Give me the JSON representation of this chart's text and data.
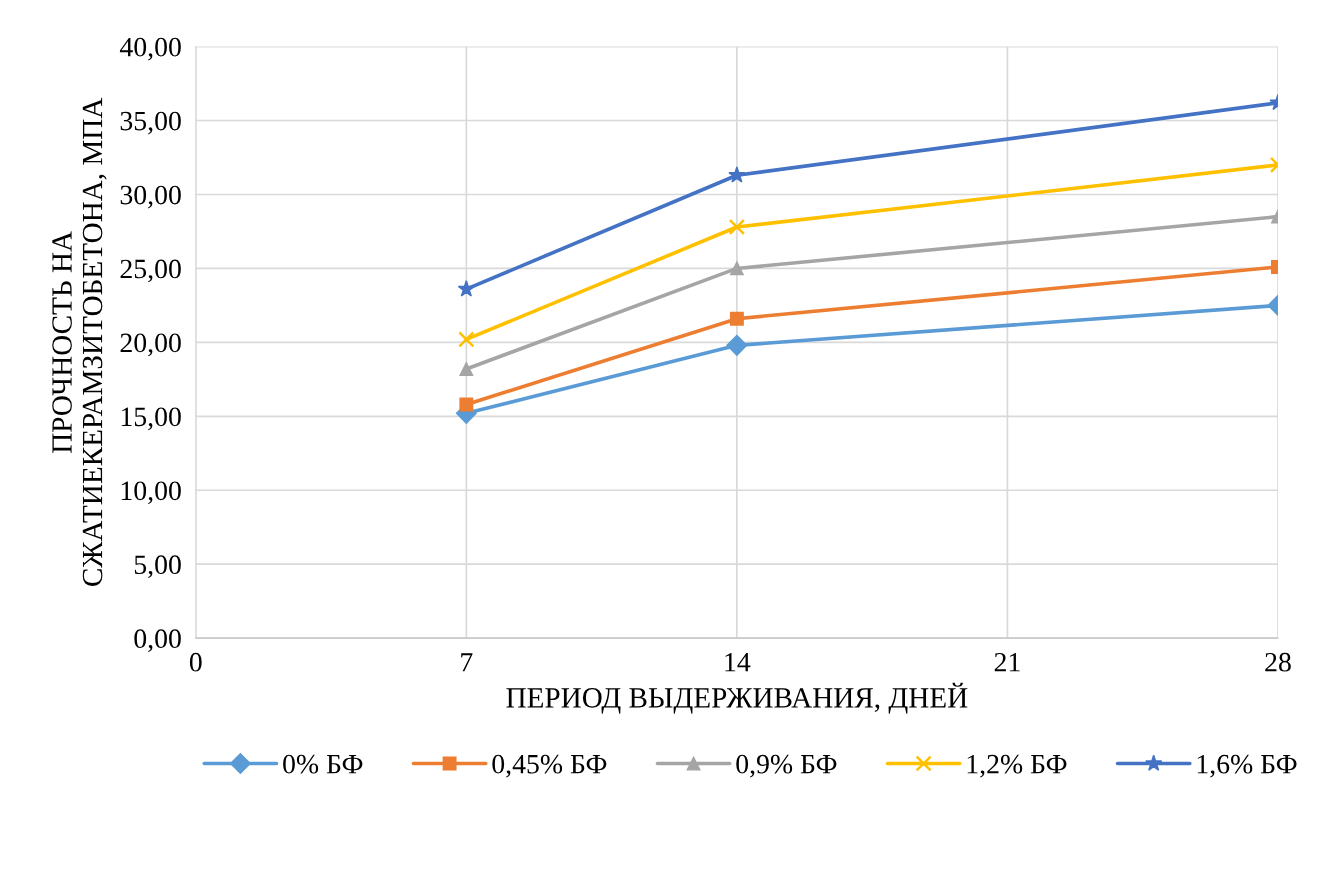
{
  "chart_data": {
    "type": "line",
    "xlabel": "ПЕРИОД ВЫДЕРЖИВАНИЯ, ДНЕЙ",
    "ylabel": "ПРОЧНОСТЬ НА\nСЖАТИЕКЕРАМЗИТОБЕТОНА, МПА",
    "x": [
      7,
      14,
      28
    ],
    "series": [
      {
        "name": "0% БФ",
        "color": "#5b9bd5",
        "marker": "diamond",
        "values": [
          15.2,
          19.8,
          22.5
        ]
      },
      {
        "name": "0,45% БФ",
        "color": "#ed7d31",
        "marker": "square",
        "values": [
          15.8,
          21.6,
          25.1
        ]
      },
      {
        "name": "0,9% БФ",
        "color": "#a5a5a5",
        "marker": "triangle",
        "values": [
          18.2,
          25.0,
          28.5
        ]
      },
      {
        "name": "1,2% БФ",
        "color": "#ffc000",
        "marker": "cross",
        "values": [
          20.2,
          27.8,
          32.0
        ]
      },
      {
        "name": "1,6% БФ",
        "color": "#4472c4",
        "marker": "star",
        "values": [
          23.6,
          31.3,
          36.2
        ]
      }
    ],
    "xlim": [
      0,
      28
    ],
    "xticks": [
      0,
      7,
      14,
      21,
      28
    ],
    "ylim": [
      0,
      40
    ],
    "yticks": [
      {
        "value": 0,
        "label": "0,00"
      },
      {
        "value": 5,
        "label": "5,00"
      },
      {
        "value": 10,
        "label": "10,00"
      },
      {
        "value": 15,
        "label": "15,00"
      },
      {
        "value": 20,
        "label": "20,00"
      },
      {
        "value": 25,
        "label": "25,00"
      },
      {
        "value": 30,
        "label": "30,00"
      },
      {
        "value": 35,
        "label": "35,00"
      },
      {
        "value": 40,
        "label": "40,00"
      }
    ],
    "grid": true,
    "legend": "bottom",
    "line_style": "solid"
  }
}
